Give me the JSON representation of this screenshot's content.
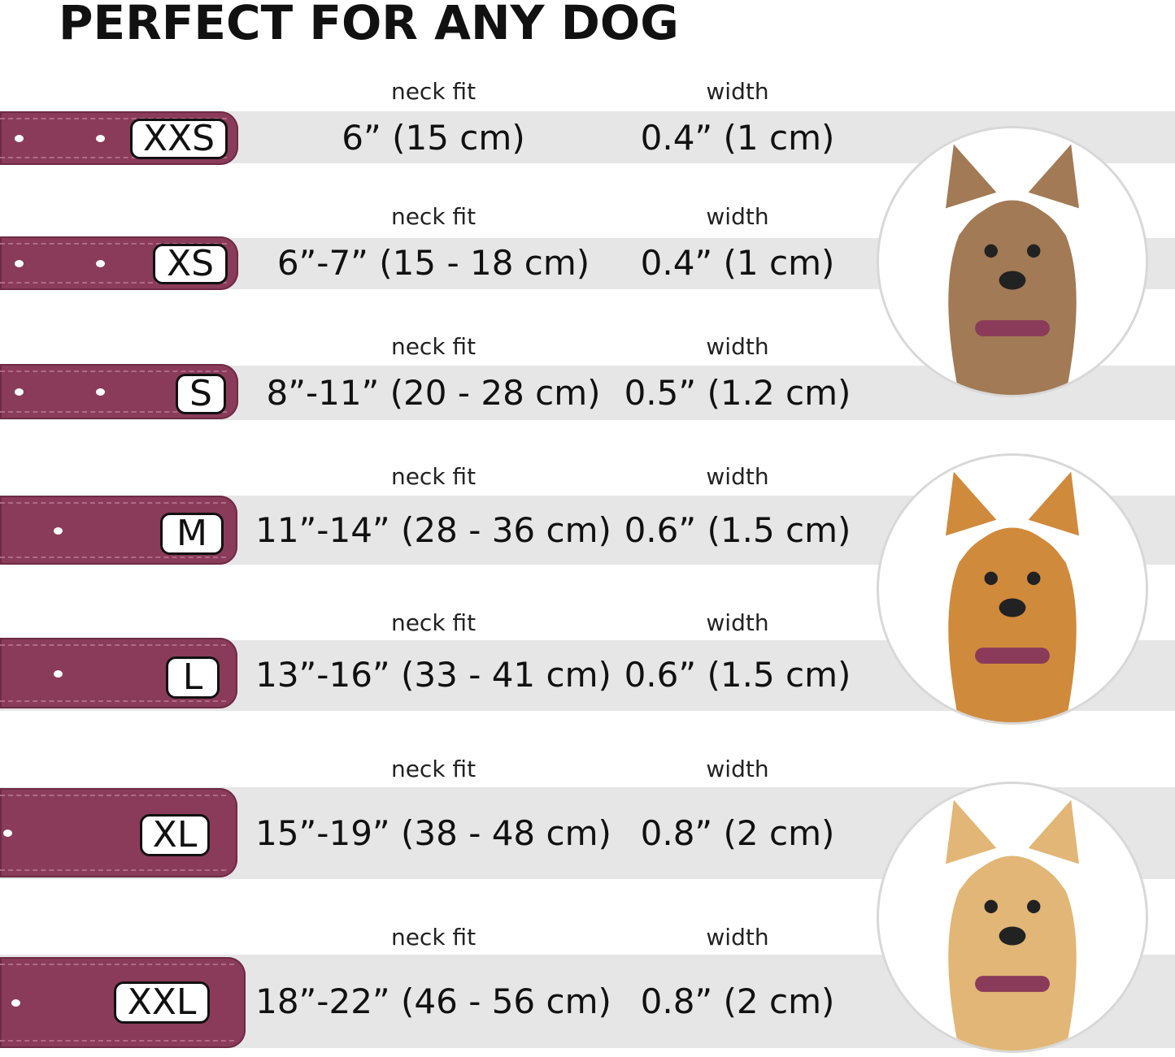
{
  "title": "PERFECT FOR ANY DOG",
  "colors": {
    "collar": "#8a3b5a",
    "band": "#e6e6e6"
  },
  "rows": [
    {
      "size": "XXS",
      "neck_label": "neck fit",
      "neck_fit": "6” (15 cm)",
      "width_label": "width",
      "width": "0.4” (1 cm)"
    },
    {
      "size": "XS",
      "neck_label": "neck fit",
      "neck_fit": "6”-7” (15 - 18 cm)",
      "width_label": "width",
      "width": "0.4” (1 cm)"
    },
    {
      "size": "S",
      "neck_label": "neck fit",
      "neck_fit": "8”-11” (20 - 28 cm)",
      "width_label": "width",
      "width": "0.5” (1.2 cm)"
    },
    {
      "size": "M",
      "neck_label": "neck fit",
      "neck_fit": "11”-14” (28 - 36 cm)",
      "width_label": "width",
      "width": "0.6” (1.5 cm)"
    },
    {
      "size": "L",
      "neck_label": "neck fit",
      "neck_fit": "13”-16” (33 - 41 cm)",
      "width_label": "width",
      "width": "0.6” (1.5 cm)"
    },
    {
      "size": "XL",
      "neck_label": "neck fit",
      "neck_fit": "15”-19” (38 - 48 cm)",
      "width_label": "width",
      "width": "0.8” (2 cm)"
    },
    {
      "size": "XXL",
      "neck_label": "neck fit",
      "neck_fit": "18”-22” (46 - 56 cm)",
      "width_label": "width",
      "width": "0.8” (2 cm)"
    }
  ],
  "dogs": [
    {
      "icon": "terrier-dog-photo",
      "fur": "#a27a55"
    },
    {
      "icon": "corgi-dog-photo",
      "fur": "#d08a3c"
    },
    {
      "icon": "labrador-dog-photo",
      "fur": "#e2b676"
    }
  ]
}
